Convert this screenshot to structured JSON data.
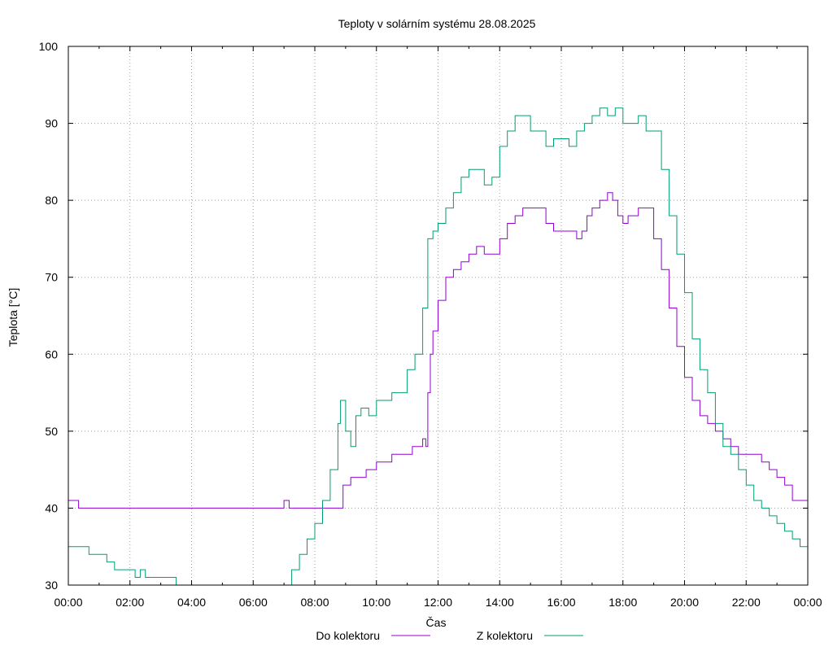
{
  "chart_data": {
    "type": "line",
    "title": "Teploty v solárním systému 28.08.2025",
    "xlabel": "Čas",
    "ylabel": "Teplota [°C]",
    "xlim": [
      "00:00",
      "24:00"
    ],
    "ylim": [
      30,
      100
    ],
    "grid": true,
    "legend_position": "bottom",
    "x_ticks": [
      "00:00",
      "02:00",
      "04:00",
      "06:00",
      "08:00",
      "10:00",
      "12:00",
      "14:00",
      "16:00",
      "18:00",
      "20:00",
      "22:00",
      "00:00"
    ],
    "y_ticks": [
      "30",
      "40",
      "50",
      "60",
      "70",
      "80",
      "90",
      "100"
    ],
    "series": [
      {
        "name": "Do kolektoru",
        "color": "#9400d3",
        "points": [
          [
            "00:00",
            41
          ],
          [
            "00:15",
            41
          ],
          [
            "00:20",
            40
          ],
          [
            "00:30",
            40
          ],
          [
            "00:40",
            40
          ],
          [
            "01:00",
            40
          ],
          [
            "02:00",
            40
          ],
          [
            "03:00",
            40
          ],
          [
            "04:00",
            40
          ],
          [
            "05:00",
            40
          ],
          [
            "06:00",
            40
          ],
          [
            "06:50",
            40
          ],
          [
            "07:00",
            41
          ],
          [
            "07:10",
            40
          ],
          [
            "07:20",
            40
          ],
          [
            "08:00",
            40
          ],
          [
            "08:50",
            40
          ],
          [
            "08:55",
            43
          ],
          [
            "09:05",
            43
          ],
          [
            "09:10",
            44
          ],
          [
            "09:30",
            44
          ],
          [
            "09:40",
            45
          ],
          [
            "09:50",
            45
          ],
          [
            "10:00",
            46
          ],
          [
            "10:20",
            46
          ],
          [
            "10:30",
            47
          ],
          [
            "11:00",
            47
          ],
          [
            "11:10",
            48
          ],
          [
            "11:25",
            48
          ],
          [
            "11:30",
            49
          ],
          [
            "11:35",
            49
          ],
          [
            "11:36",
            48
          ],
          [
            "11:40",
            55
          ],
          [
            "11:45",
            60
          ],
          [
            "11:50",
            63
          ],
          [
            "12:00",
            67
          ],
          [
            "12:15",
            70
          ],
          [
            "12:30",
            71
          ],
          [
            "12:45",
            72
          ],
          [
            "13:00",
            73
          ],
          [
            "13:15",
            74
          ],
          [
            "13:30",
            73
          ],
          [
            "13:45",
            73
          ],
          [
            "14:00",
            75
          ],
          [
            "14:15",
            77
          ],
          [
            "14:30",
            78
          ],
          [
            "14:45",
            79
          ],
          [
            "15:00",
            79
          ],
          [
            "15:15",
            79
          ],
          [
            "15:30",
            77
          ],
          [
            "15:45",
            76
          ],
          [
            "16:00",
            76
          ],
          [
            "16:15",
            76
          ],
          [
            "16:30",
            75
          ],
          [
            "16:40",
            76
          ],
          [
            "16:50",
            78
          ],
          [
            "17:00",
            79
          ],
          [
            "17:15",
            80
          ],
          [
            "17:30",
            81
          ],
          [
            "17:40",
            80
          ],
          [
            "17:50",
            78
          ],
          [
            "18:00",
            77
          ],
          [
            "18:10",
            78
          ],
          [
            "18:30",
            79
          ],
          [
            "18:50",
            79
          ],
          [
            "19:00",
            75
          ],
          [
            "19:15",
            71
          ],
          [
            "19:30",
            66
          ],
          [
            "19:45",
            61
          ],
          [
            "20:00",
            57
          ],
          [
            "20:15",
            54
          ],
          [
            "20:30",
            52
          ],
          [
            "20:45",
            51
          ],
          [
            "21:00",
            50
          ],
          [
            "21:15",
            49
          ],
          [
            "21:30",
            48
          ],
          [
            "21:45",
            47
          ],
          [
            "22:00",
            47
          ],
          [
            "22:30",
            46
          ],
          [
            "22:45",
            45
          ],
          [
            "23:00",
            44
          ],
          [
            "23:15",
            43
          ],
          [
            "23:30",
            41
          ],
          [
            "23:59",
            41
          ]
        ]
      },
      {
        "name": "Z kolektoru",
        "color": "#009e73",
        "points": [
          [
            "00:00",
            35
          ],
          [
            "00:30",
            35
          ],
          [
            "00:40",
            34
          ],
          [
            "01:00",
            34
          ],
          [
            "01:15",
            33
          ],
          [
            "01:30",
            32
          ],
          [
            "02:00",
            32
          ],
          [
            "02:10",
            31
          ],
          [
            "02:20",
            32
          ],
          [
            "02:30",
            31
          ],
          [
            "03:00",
            31
          ],
          [
            "03:30",
            30
          ],
          [
            "03:40",
            30
          ],
          [
            "06:50",
            30
          ],
          [
            "07:00",
            30
          ],
          [
            "07:15",
            32
          ],
          [
            "07:30",
            34
          ],
          [
            "07:45",
            36
          ],
          [
            "08:00",
            38
          ],
          [
            "08:15",
            41
          ],
          [
            "08:30",
            45
          ],
          [
            "08:45",
            51
          ],
          [
            "08:50",
            54
          ],
          [
            "09:00",
            50
          ],
          [
            "09:10",
            48
          ],
          [
            "09:20",
            52
          ],
          [
            "09:30",
            53
          ],
          [
            "09:45",
            52
          ],
          [
            "10:00",
            54
          ],
          [
            "10:15",
            54
          ],
          [
            "10:30",
            55
          ],
          [
            "10:45",
            55
          ],
          [
            "11:00",
            58
          ],
          [
            "11:15",
            60
          ],
          [
            "11:30",
            66
          ],
          [
            "11:40",
            75
          ],
          [
            "11:50",
            76
          ],
          [
            "12:00",
            77
          ],
          [
            "12:15",
            79
          ],
          [
            "12:30",
            81
          ],
          [
            "12:45",
            83
          ],
          [
            "13:00",
            84
          ],
          [
            "13:15",
            84
          ],
          [
            "13:30",
            82
          ],
          [
            "13:45",
            83
          ],
          [
            "14:00",
            87
          ],
          [
            "14:15",
            89
          ],
          [
            "14:30",
            91
          ],
          [
            "14:45",
            91
          ],
          [
            "15:00",
            89
          ],
          [
            "15:15",
            89
          ],
          [
            "15:30",
            87
          ],
          [
            "15:45",
            88
          ],
          [
            "16:00",
            88
          ],
          [
            "16:15",
            87
          ],
          [
            "16:30",
            89
          ],
          [
            "16:45",
            90
          ],
          [
            "17:00",
            91
          ],
          [
            "17:15",
            92
          ],
          [
            "17:30",
            91
          ],
          [
            "17:45",
            92
          ],
          [
            "18:00",
            90
          ],
          [
            "18:15",
            90
          ],
          [
            "18:30",
            91
          ],
          [
            "18:45",
            89
          ],
          [
            "19:00",
            89
          ],
          [
            "19:15",
            84
          ],
          [
            "19:30",
            78
          ],
          [
            "19:45",
            73
          ],
          [
            "20:00",
            68
          ],
          [
            "20:15",
            62
          ],
          [
            "20:30",
            58
          ],
          [
            "20:45",
            55
          ],
          [
            "21:00",
            51
          ],
          [
            "21:15",
            48
          ],
          [
            "21:30",
            47
          ],
          [
            "21:45",
            45
          ],
          [
            "22:00",
            43
          ],
          [
            "22:15",
            41
          ],
          [
            "22:30",
            40
          ],
          [
            "22:45",
            39
          ],
          [
            "23:00",
            38
          ],
          [
            "23:15",
            37
          ],
          [
            "23:30",
            36
          ],
          [
            "23:45",
            35
          ],
          [
            "23:59",
            35
          ]
        ]
      }
    ]
  }
}
